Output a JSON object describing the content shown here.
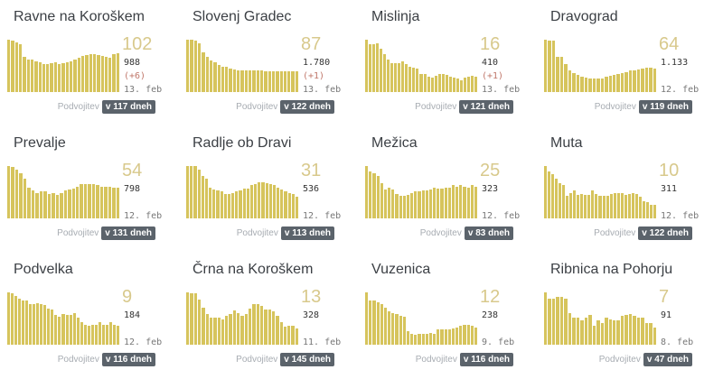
{
  "colors": {
    "bar": "#d6c45c",
    "active_number": "#d8c98c",
    "delta": "#c0776a",
    "badge": "#5b636b"
  },
  "doubling_label": "Podvojitev",
  "cards": [
    {
      "name": "Ravne na Koroškem",
      "active": "102",
      "total": "988",
      "delta": "(+6)",
      "date": "13. feb",
      "doubling": "v 117 dneh",
      "bars": [
        96,
        94,
        91,
        87,
        64,
        60,
        60,
        57,
        55,
        52,
        52,
        53,
        54,
        52,
        53,
        55,
        57,
        60,
        63,
        66,
        68,
        69,
        70,
        68,
        67,
        64,
        63,
        70,
        72
      ]
    },
    {
      "name": "Slovenj Gradec",
      "active": "87",
      "total": "1.780",
      "delta": "(+1)",
      "date": "13. feb",
      "doubling": "v 122 dneh",
      "bars": [
        92,
        92,
        90,
        85,
        70,
        62,
        56,
        52,
        48,
        45,
        44,
        42,
        40,
        38,
        38,
        38,
        38,
        38,
        38,
        38,
        37,
        37,
        37,
        37,
        37,
        37,
        36,
        36,
        36
      ]
    },
    {
      "name": "Mislinja",
      "active": "16",
      "total": "410",
      "delta": "(+1)",
      "date": "13. feb",
      "doubling": "v 121 dneh",
      "bars": [
        100,
        92,
        92,
        93,
        82,
        72,
        62,
        55,
        56,
        56,
        58,
        53,
        48,
        46,
        44,
        34,
        34,
        30,
        27,
        31,
        34,
        34,
        33,
        30,
        28,
        26,
        22,
        28,
        30,
        31,
        30
      ]
    },
    {
      "name": "Dravograd",
      "active": "64",
      "total": "1.133",
      "delta": "",
      "date": "12. feb",
      "doubling": "v 119 dneh",
      "bars": [
        98,
        96,
        96,
        66,
        66,
        52,
        40,
        36,
        32,
        28,
        27,
        26,
        26,
        26,
        26,
        28,
        30,
        32,
        34,
        36,
        38,
        40,
        40,
        42,
        44,
        46,
        45,
        44
      ]
    },
    {
      "name": "Prevalje",
      "active": "54",
      "total": "798",
      "delta": "",
      "date": "12. feb",
      "doubling": "v 131 dneh",
      "bars": [
        98,
        96,
        92,
        85,
        75,
        58,
        52,
        47,
        50,
        50,
        46,
        47,
        44,
        48,
        53,
        54,
        56,
        60,
        64,
        64,
        64,
        64,
        62,
        60,
        60,
        60,
        58,
        58
      ]
    },
    {
      "name": "Radlje ob Dravi",
      "active": "31",
      "total": "536",
      "delta": "",
      "date": "12. feb",
      "doubling": "v 113 dneh",
      "bars": [
        98,
        98,
        98,
        92,
        80,
        74,
        58,
        54,
        52,
        50,
        46,
        45,
        48,
        50,
        53,
        55,
        55,
        62,
        64,
        68,
        67,
        66,
        65,
        62,
        58,
        54,
        50,
        48,
        45,
        40
      ]
    },
    {
      "name": "Mežica",
      "active": "25",
      "total": "323",
      "delta": "",
      "date": "12. feb",
      "doubling": "v 83 dneh",
      "bars": [
        98,
        88,
        84,
        80,
        66,
        54,
        58,
        54,
        46,
        42,
        42,
        44,
        47,
        50,
        50,
        52,
        52,
        54,
        58,
        56,
        56,
        58,
        58,
        62,
        60,
        62,
        60,
        58,
        62,
        60
      ]
    },
    {
      "name": "Muta",
      "active": "10",
      "total": "311",
      "delta": "",
      "date": "12. feb",
      "doubling": "v 122 dneh",
      "bars": [
        98,
        88,
        82,
        74,
        66,
        62,
        42,
        48,
        52,
        44,
        46,
        44,
        44,
        52,
        46,
        42,
        42,
        42,
        46,
        48,
        48,
        48,
        44,
        46,
        48,
        46,
        40,
        32,
        30,
        26,
        26
      ]
    },
    {
      "name": "Podvelka",
      "active": "9",
      "total": "184",
      "delta": "",
      "date": "12. feb",
      "doubling": "v 116 dneh",
      "bars": [
        98,
        96,
        92,
        86,
        82,
        82,
        76,
        76,
        78,
        76,
        74,
        68,
        66,
        56,
        52,
        58,
        56,
        56,
        60,
        50,
        42,
        38,
        35,
        38,
        38,
        42,
        38,
        38,
        42,
        38,
        35
      ]
    },
    {
      "name": "Črna na Koroškem",
      "active": "13",
      "total": "328",
      "delta": "",
      "date": "11. feb",
      "doubling": "v 145 dneh",
      "bars": [
        98,
        96,
        96,
        84,
        70,
        58,
        50,
        50,
        50,
        48,
        54,
        58,
        64,
        60,
        54,
        58,
        68,
        76,
        76,
        72,
        66,
        66,
        62,
        54,
        42,
        34,
        36,
        36,
        30
      ]
    },
    {
      "name": "Vuzenica",
      "active": "12",
      "total": "238",
      "delta": "",
      "date": "9. feb",
      "doubling": "v 116 dneh",
      "bars": [
        98,
        82,
        82,
        80,
        76,
        70,
        62,
        60,
        58,
        54,
        52,
        26,
        20,
        18,
        20,
        20,
        20,
        22,
        20,
        28,
        28,
        28,
        28,
        30,
        32,
        36,
        38,
        38,
        36,
        32
      ]
    },
    {
      "name": "Ribnica na Pohorju",
      "active": "7",
      "total": "91",
      "delta": "",
      "date": "8. feb",
      "doubling": "v 47 dneh",
      "bars": [
        98,
        86,
        86,
        90,
        90,
        86,
        60,
        50,
        50,
        46,
        50,
        56,
        36,
        46,
        40,
        50,
        48,
        46,
        46,
        54,
        56,
        58,
        54,
        50,
        50,
        40,
        40,
        32
      ]
    }
  ]
}
